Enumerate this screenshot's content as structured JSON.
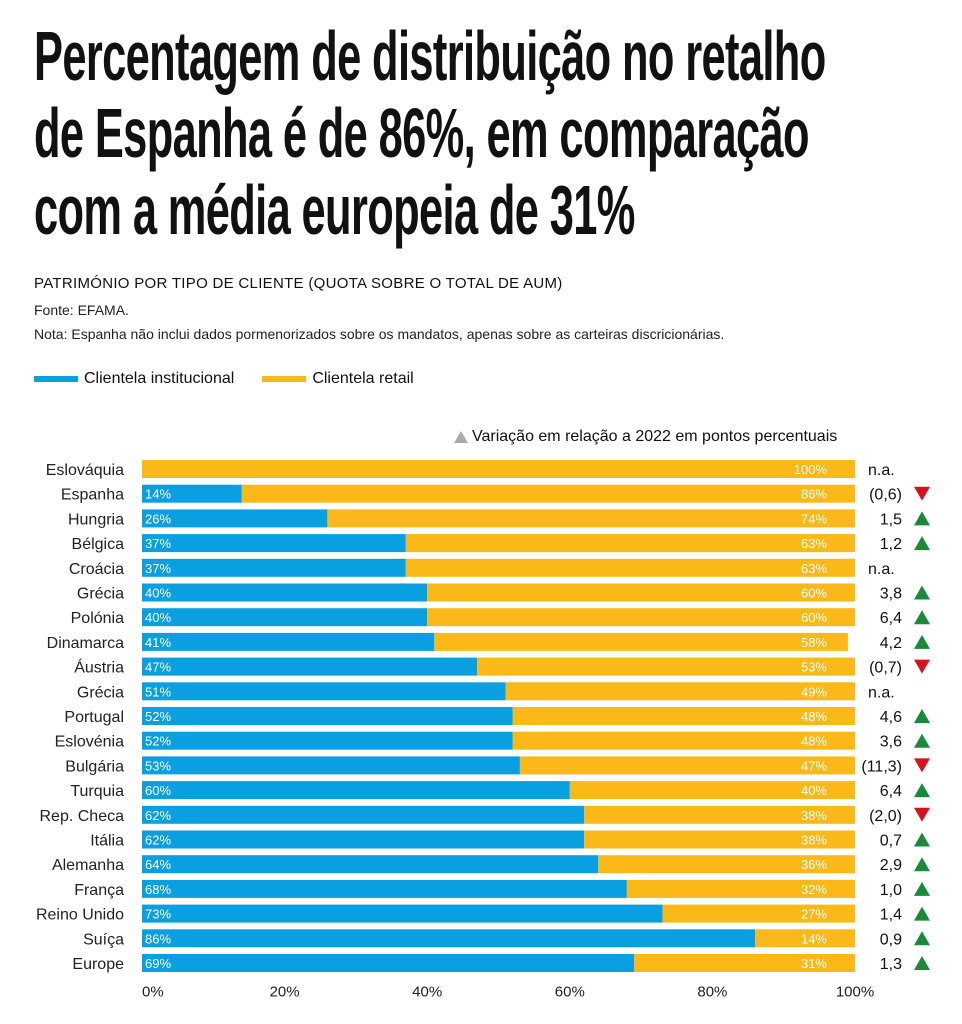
{
  "headline": {
    "line1": "Percentagem de distribuição no retalho",
    "line2": "de Espanha é de 86%, em comparação",
    "line3": "com a média europeia de 31%"
  },
  "subtitle": "PATRIMÓNIO POR TIPO DE CLIENTE (QUOTA SOBRE O TOTAL DE AUM)",
  "source": "Fonte: EFAMA.",
  "note": "Nota: Espanha não inclui dados pormenorizados sobre os mandatos, apenas sobre as carteiras discricionárias.",
  "variation_label": "Variação em relação a 2022 em pontos percentuais",
  "colors": {
    "institutional": "#0a9fe0",
    "retail": "#fbb919",
    "up": "#1a8a3a",
    "down": "#d3141c",
    "neutral": "#aaaaaa"
  },
  "chart_data": {
    "type": "bar",
    "orientation": "horizontal",
    "stacked": true,
    "categories": [
      "Eslováquia",
      "Espanha",
      "Hungria",
      "Bélgica",
      "Croácia",
      "Grécia",
      "Polónia",
      "Dinamarca",
      "Áustria",
      "Grécia",
      "Portugal",
      "Eslovénia",
      "Bulgária",
      "Turquia",
      "Rep. Checa",
      "Itália",
      "Alemanha",
      "França",
      "Reino Unido",
      "Suíça",
      "Europe"
    ],
    "series": [
      {
        "name": "Clientela institucional",
        "values": [
          0,
          14,
          26,
          37,
          37,
          40,
          40,
          41,
          47,
          51,
          52,
          52,
          53,
          60,
          62,
          62,
          64,
          68,
          73,
          86,
          69
        ]
      },
      {
        "name": "Clientela retail",
        "values": [
          100,
          86,
          74,
          63,
          63,
          60,
          60,
          58,
          53,
          49,
          48,
          48,
          47,
          40,
          38,
          38,
          36,
          32,
          27,
          14,
          31
        ]
      }
    ],
    "inst_labels": [
      "",
      "14%",
      "26%",
      "37%",
      "37%",
      "40%",
      "40%",
      "41%",
      "47%",
      "51%",
      "52%",
      "52%",
      "53%",
      "60%",
      "62%",
      "62%",
      "64%",
      "68%",
      "73%",
      "86%",
      "69%"
    ],
    "retail_labels": [
      "100%",
      "86%",
      "74%",
      "63%",
      "63%",
      "60%",
      "60%",
      "58%",
      "53%",
      "49%",
      "48%",
      "48%",
      "47%",
      "40%",
      "38%",
      "38%",
      "36%",
      "32%",
      "27%",
      "14%",
      "31%"
    ],
    "variation": [
      "n.a.",
      "(0,6)",
      "1,5",
      "1,2",
      "n.a.",
      "3,8",
      "6,4",
      "4,2",
      "(0,7)",
      "n.a.",
      "4,6",
      "3,6",
      "(11,3)",
      "6,4",
      "(2,0)",
      "0,7",
      "2,9",
      "1,0",
      "1,4",
      "0,9",
      "1,3"
    ],
    "variation_direction": [
      "none",
      "down",
      "up",
      "up",
      "none",
      "up",
      "up",
      "up",
      "down",
      "none",
      "up",
      "up",
      "down",
      "up",
      "down",
      "up",
      "up",
      "up",
      "up",
      "up",
      "up"
    ],
    "xticks": [
      "0%",
      "20%",
      "40%",
      "60%",
      "80%",
      "100%"
    ],
    "xlim": [
      0,
      100
    ],
    "legend": "top-left"
  }
}
